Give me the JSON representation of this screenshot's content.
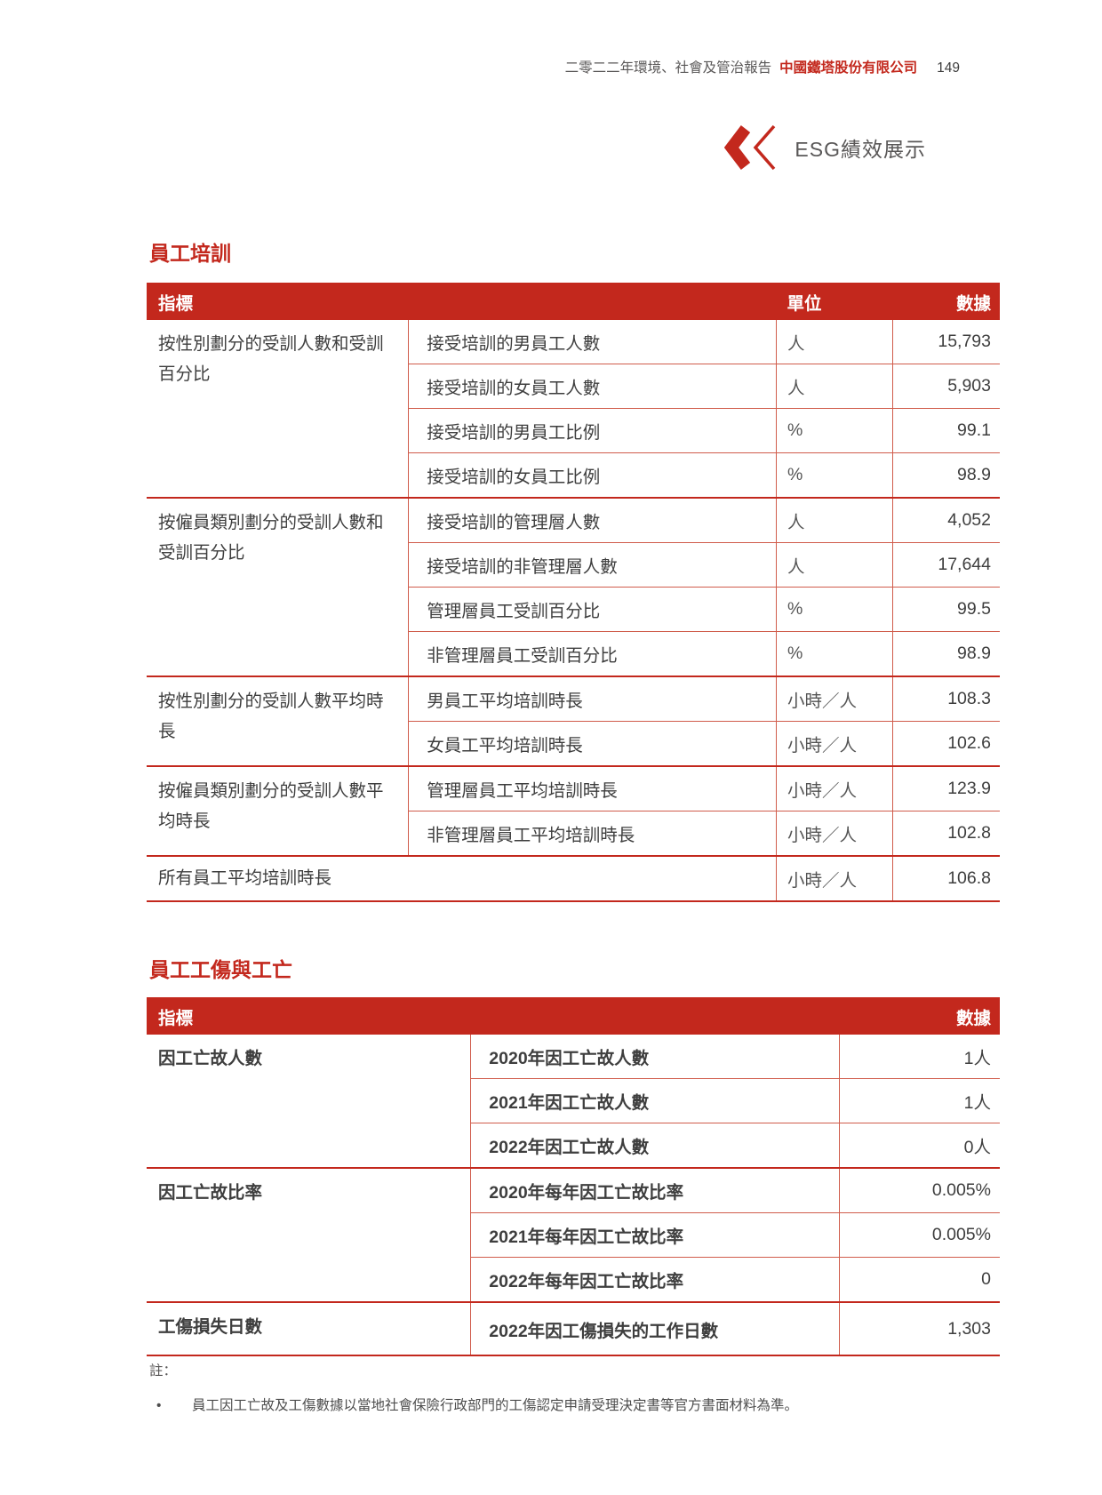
{
  "page": {
    "header": {
      "report_title": "二零二二年環境、社會及管治報告",
      "company": "中國鐵塔股份有限公司",
      "page_number": "149"
    },
    "banner_label": "ESG績效展示"
  },
  "colors": {
    "brand_red": "#c3281d",
    "row_border": "#d05c4b",
    "text_dark": "#3e3e3e",
    "text_gray": "#595757"
  },
  "tables": [
    {
      "id": "employee-training",
      "title": "員工培訓",
      "headers": {
        "indicator": "指標",
        "unit": "單位",
        "value": "數據"
      },
      "groups": [
        {
          "label": "按性別劃分的受訓人數和受訓百分比",
          "rows": [
            {
              "metric": "接受培訓的男員工人數",
              "unit": "人",
              "value": "15,793"
            },
            {
              "metric": "接受培訓的女員工人數",
              "unit": "人",
              "value": "5,903"
            },
            {
              "metric": "接受培訓的男員工比例",
              "unit": "%",
              "value": "99.1"
            },
            {
              "metric": "接受培訓的女員工比例",
              "unit": "%",
              "value": "98.9"
            }
          ]
        },
        {
          "label": "按僱員類別劃分的受訓人數和受訓百分比",
          "rows": [
            {
              "metric": "接受培訓的管理層人數",
              "unit": "人",
              "value": "4,052"
            },
            {
              "metric": "接受培訓的非管理層人數",
              "unit": "人",
              "value": "17,644"
            },
            {
              "metric": "管理層員工受訓百分比",
              "unit": "%",
              "value": "99.5"
            },
            {
              "metric": "非管理層員工受訓百分比",
              "unit": "%",
              "value": "98.9"
            }
          ]
        },
        {
          "label": "按性別劃分的受訓人數平均時長",
          "rows": [
            {
              "metric": "男員工平均培訓時長",
              "unit": "小時／人",
              "value": "108.3"
            },
            {
              "metric": "女員工平均培訓時長",
              "unit": "小時／人",
              "value": "102.6"
            }
          ]
        },
        {
          "label": "按僱員類別劃分的受訓人數平均時長",
          "rows": [
            {
              "metric": "管理層員工平均培訓時長",
              "unit": "小時／人",
              "value": "123.9"
            },
            {
              "metric": "非管理層員工平均培訓時長",
              "unit": "小時／人",
              "value": "102.8"
            }
          ]
        },
        {
          "label": "所有員工平均培訓時長",
          "rows": [
            {
              "metric": "",
              "unit": "小時／人",
              "value": "106.8"
            }
          ]
        }
      ]
    },
    {
      "id": "work-injury",
      "title": "員工工傷與工亡",
      "headers": {
        "indicator": "指標",
        "value": "數據"
      },
      "groups": [
        {
          "label": "因工亡故人數",
          "rows": [
            {
              "metric": "2020年因工亡故人數",
              "value": "1人"
            },
            {
              "metric": "2021年因工亡故人數",
              "value": "1人"
            },
            {
              "metric": "2022年因工亡故人數",
              "value": "0人"
            }
          ]
        },
        {
          "label": "因工亡故比率",
          "rows": [
            {
              "metric": "2020年每年因工亡故比率",
              "value": "0.005%"
            },
            {
              "metric": "2021年每年因工亡故比率",
              "value": "0.005%"
            },
            {
              "metric": "2022年每年因工亡故比率",
              "value": "0"
            }
          ]
        },
        {
          "label": "工傷損失日數",
          "rows": [
            {
              "metric": "2022年因工傷損失的工作日數",
              "value": "1,303"
            }
          ]
        }
      ]
    }
  ],
  "notes": {
    "label": "註：",
    "bullet": "•",
    "items": [
      "員工因工亡故及工傷數據以當地社會保險行政部門的工傷認定申請受理決定書等官方書面材料為準。"
    ]
  }
}
